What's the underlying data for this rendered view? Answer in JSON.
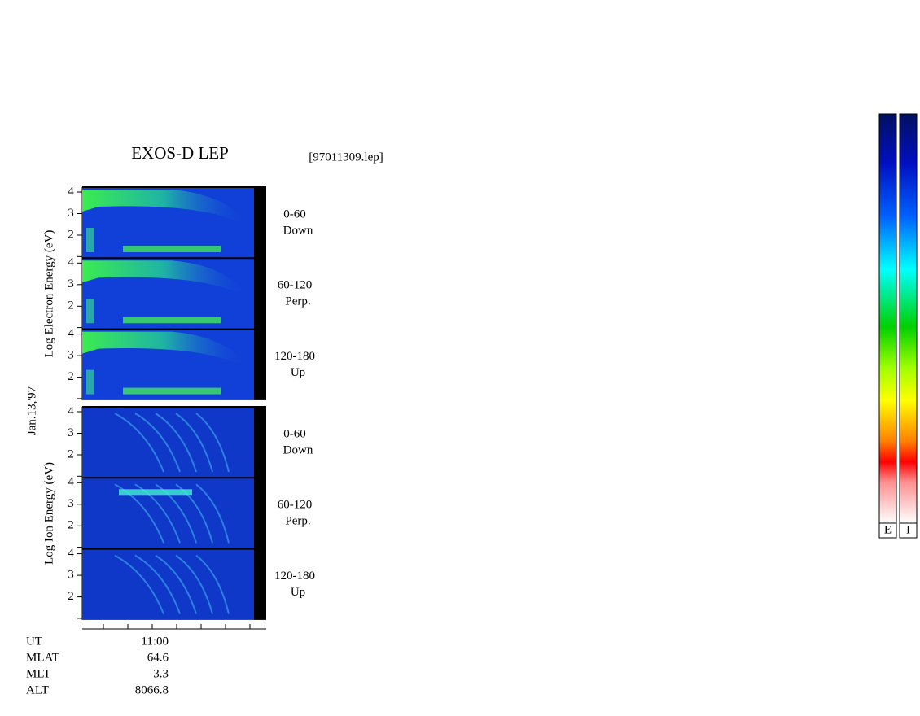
{
  "title": "EXOS-D LEP",
  "file": "[97011309.lep]",
  "date": "Jan.13,'97",
  "groups": [
    {
      "ylabel": "Log  Electron  Energy (eV)",
      "panels": [
        {
          "angle": "0-60",
          "direction": "Down"
        },
        {
          "angle": "60-120",
          "direction": "Perp."
        },
        {
          "angle": "120-180",
          "direction": "Up"
        }
      ]
    },
    {
      "ylabel": "Log  Ion  Energy (eV)",
      "panels": [
        {
          "angle": "0-60",
          "direction": "Down"
        },
        {
          "angle": "60-120",
          "direction": "Perp."
        },
        {
          "angle": "120-180",
          "direction": "Up"
        }
      ]
    }
  ],
  "yticks": [
    "4",
    "3",
    "2"
  ],
  "info": [
    {
      "label": "UT",
      "value": "11:00"
    },
    {
      "label": "MLAT",
      "value": "64.6"
    },
    {
      "label": "MLT",
      "value": "3.3"
    },
    {
      "label": "ALT",
      "value": "8066.8"
    }
  ],
  "colorbars": [
    "E",
    "I"
  ]
}
